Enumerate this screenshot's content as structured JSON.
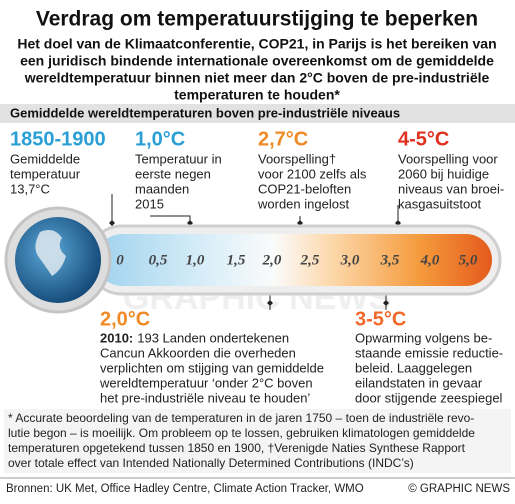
{
  "header": {
    "title": "Verdrag om temperatuurstijging te beperken",
    "subtitle": [
      "Het doel van de Klimaatconferentie, COP21, in Parijs is het bereiken van",
      "een juridisch bindende internationale overeenkomst om de gemiddelde",
      "wereldtemperatuur binnen niet meer dan 2°C boven de pre-industriële",
      "temperaturen te houden*"
    ]
  },
  "section_title": "Gemiddelde wereldtemperaturen boven pre-industriële niveaus",
  "callouts_top": [
    {
      "heading": "1850-1900",
      "text": [
        "Gemiddelde",
        "temperatuur",
        "13,7°C"
      ]
    },
    {
      "heading": "1,0°C",
      "text": [
        "Temperatuur in",
        "eerste negen",
        "maanden",
        "2015"
      ]
    },
    {
      "heading": "2,7°C",
      "text": [
        "Voorspelling†",
        "voor 2100 zelfs als",
        "COP21-beloften",
        "worden ingelost"
      ]
    },
    {
      "heading": "4-5°C",
      "text": [
        "Voorspelling voor",
        "2060 bij huidige",
        "niveaus van broei-",
        "kasgasuitstoot"
      ]
    }
  ],
  "scale": [
    "0",
    "0,5",
    "1,0",
    "1,5",
    "2,0",
    "2,5",
    "3,0",
    "3,5",
    "4,0",
    "5,0"
  ],
  "callouts_bottom": [
    {
      "heading": "2,0°C",
      "lead": "2010:",
      "text": [
        "193 Landen ondertekenen",
        "Cancun Akkoorden die overheden",
        "verplichten om stijging van gemiddelde",
        "wereldtemperatuur ‘onder 2°C boven",
        "het pre-industriële niveau te houden’"
      ]
    },
    {
      "heading": "3-5°C",
      "text": [
        "Opwarming volgens be-",
        "staande emissie reductie-",
        "beleid. Laaggelegen",
        "eilandstaten in gevaar",
        "door stijgende zeespiegel"
      ]
    }
  ],
  "footnote": [
    "* Accurate beoordeling van de temperaturen in de jaren 1750 – toen de industriële revo-",
    "lutie begon – is moeilijk. Om probleem op te lossen, gebruiken klimatologen gemiddelde",
    "temperaturen opgetekend tussen 1850 en 1900, †Verenigde Naties Synthese Rapport",
    "over totale effect van Intended Nationally Determined Contributions (INDC’s)"
  ],
  "sources": "Bronnen: UK Met, Office Hadley Centre, Climate Action Tracker, WMO",
  "credit": "© GRAPHIC NEWS",
  "watermark": "GRAPHIC NEWS"
}
